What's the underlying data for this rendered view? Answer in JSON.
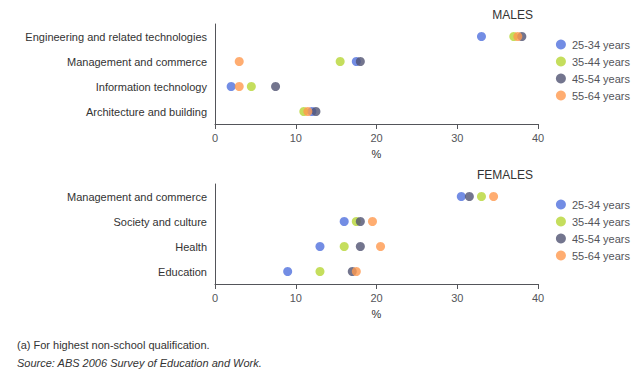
{
  "chart_data": [
    {
      "type": "scatter",
      "title": "MALES",
      "categories": [
        "Engineering and related technologies",
        "Management and commerce",
        "Information technology",
        "Architecture and building"
      ],
      "series": [
        {
          "name": "25-34 years",
          "values": [
            33.0,
            17.5,
            2.0,
            12.0
          ]
        },
        {
          "name": "35-44 years",
          "values": [
            37.0,
            15.5,
            4.5,
            11.0
          ]
        },
        {
          "name": "45-54 years",
          "values": [
            38.0,
            18.0,
            7.5,
            12.5
          ]
        },
        {
          "name": "55-64 years",
          "values": [
            37.5,
            3.0,
            3.0,
            11.5
          ]
        }
      ],
      "xlim": [
        0,
        40
      ],
      "xticks": [
        0,
        10,
        20,
        30,
        40
      ],
      "xlabel": "%",
      "grid": false,
      "legend": "right"
    },
    {
      "type": "scatter",
      "title": "FEMALES",
      "categories": [
        "Management and commerce",
        "Society and culture",
        "Health",
        "Education"
      ],
      "series": [
        {
          "name": "25-34 years",
          "values": [
            30.5,
            16.0,
            13.0,
            9.0
          ]
        },
        {
          "name": "35-44 years",
          "values": [
            33.0,
            17.5,
            16.0,
            13.0
          ]
        },
        {
          "name": "45-54 years",
          "values": [
            31.5,
            18.0,
            18.0,
            17.0
          ]
        },
        {
          "name": "55-64 years",
          "values": [
            34.5,
            19.5,
            20.5,
            17.5
          ]
        }
      ],
      "xlim": [
        0,
        40
      ],
      "xticks": [
        0,
        10,
        20,
        30,
        40
      ],
      "xlabel": "%",
      "grid": false,
      "legend": "right",
      "annotations": [
        "(a) For highest non-school qualification.",
        "Source: ABS 2006 Survey of Education and Work."
      ]
    }
  ]
}
